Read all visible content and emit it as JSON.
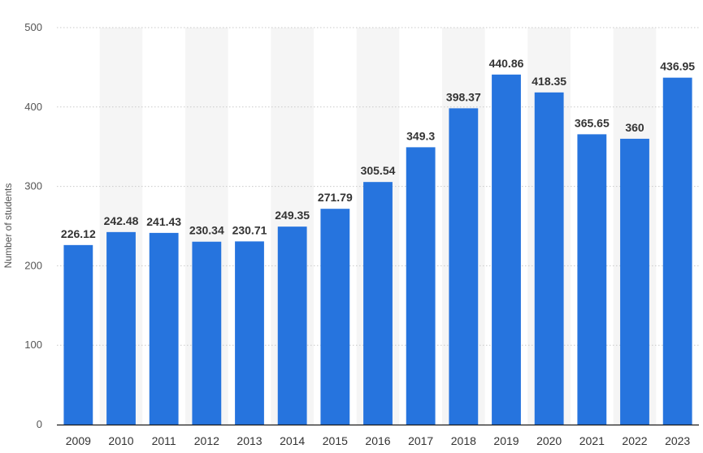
{
  "chart_data": {
    "type": "bar",
    "title": "",
    "xlabel": "",
    "ylabel": "Number of students",
    "ylim": [
      0,
      500
    ],
    "yticks": [
      0,
      100,
      200,
      300,
      400,
      500
    ],
    "grid": true,
    "legend": "none",
    "bar_color": "#2674de",
    "categories": [
      "2009",
      "2010",
      "2011",
      "2012",
      "2013",
      "2014",
      "2015",
      "2016",
      "2017",
      "2018",
      "2019",
      "2020",
      "2021",
      "2022",
      "2023"
    ],
    "values": [
      226.12,
      242.48,
      241.43,
      230.34,
      230.71,
      249.35,
      271.79,
      305.54,
      349.3,
      398.37,
      440.86,
      418.35,
      365.65,
      360,
      436.95
    ],
    "value_labels": [
      "226.12",
      "242.48",
      "241.43",
      "230.34",
      "230.71",
      "249.35",
      "271.79",
      "305.54",
      "349.3",
      "398.37",
      "440.86",
      "418.35",
      "365.65",
      "360",
      "436.95"
    ]
  }
}
